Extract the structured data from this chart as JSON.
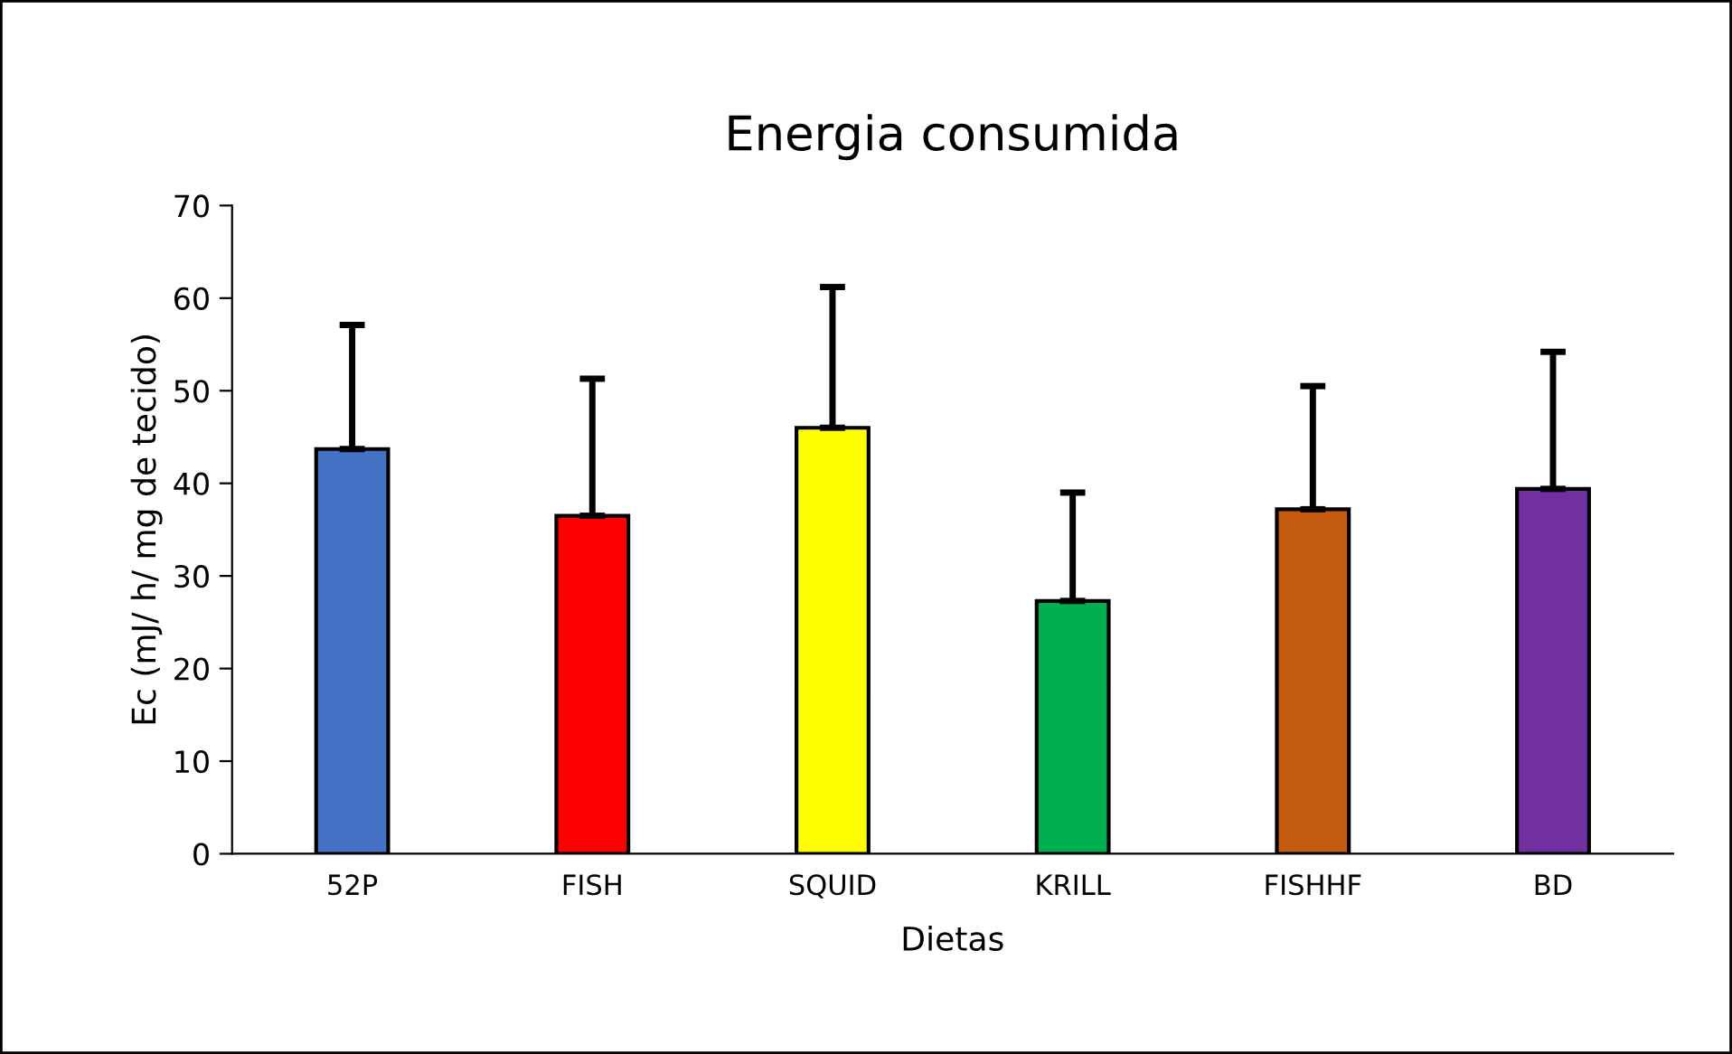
{
  "chart_data": {
    "type": "bar",
    "title": "Energia consumida",
    "xlabel": "Dietas",
    "ylabel": "Ec (mJ/ h/ mg de tecido)",
    "categories": [
      "52P",
      "FISH",
      "SQUID",
      "KRILL",
      "FISHHF",
      "BD"
    ],
    "values": [
      43.7,
      36.5,
      46.0,
      27.3,
      37.2,
      39.4
    ],
    "colors": [
      "#4472c4",
      "#ff0000",
      "#ffff00",
      "#00b050",
      "#c55a11",
      "#7030a0"
    ],
    "errors": [
      [
        43.7,
        57.1
      ],
      [
        36.5,
        51.3
      ],
      [
        46.0,
        61.2
      ],
      [
        27.3,
        39.0
      ],
      [
        37.2,
        50.5
      ],
      [
        39.4,
        54.2
      ]
    ],
    "ylim": [
      0,
      70
    ],
    "yticks": [
      0,
      10,
      20,
      30,
      40,
      50,
      60,
      70
    ],
    "grid": false,
    "legend": false
  }
}
